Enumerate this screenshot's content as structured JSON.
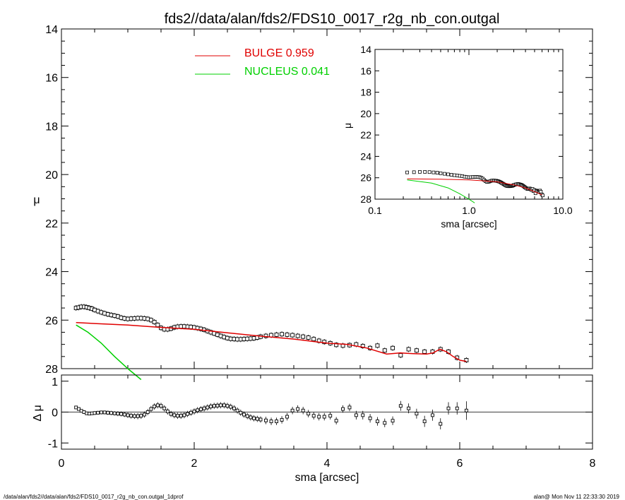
{
  "title": "fds2//data/alan/fds2/FDS10_0017_r2g_nb_con.outgal",
  "footer_left": "/data/alan/fds2//data/alan/fds2/FDS10_0017_r2g_nb_con.outgal_1dprof",
  "footer_right": "alan@  Mon Nov 11 22:33:30 2019",
  "chart_data": [
    {
      "id": "main",
      "type": "scatter",
      "xlabel": "sma [arcsec]",
      "ylabel": "μ",
      "xlim": [
        0,
        8
      ],
      "ylim": [
        28,
        14
      ],
      "xticks": [
        0,
        2,
        4,
        6,
        8
      ],
      "yticks": [
        14,
        16,
        18,
        20,
        22,
        24,
        26,
        28
      ],
      "legend": [
        {
          "label": "BULGE",
          "value": "0.959",
          "color": "#e00000"
        },
        {
          "label": "NUCLEUS",
          "value": "0.041",
          "color": "#00d000"
        }
      ],
      "data_points": {
        "x": [
          0.22,
          0.26,
          0.3,
          0.34,
          0.38,
          0.42,
          0.46,
          0.5,
          0.55,
          0.6,
          0.65,
          0.7,
          0.75,
          0.8,
          0.85,
          0.9,
          0.95,
          1.0,
          1.05,
          1.1,
          1.15,
          1.2,
          1.25,
          1.3,
          1.35,
          1.4,
          1.45,
          1.5,
          1.55,
          1.6,
          1.65,
          1.7,
          1.75,
          1.8,
          1.85,
          1.9,
          1.95,
          2.0,
          2.05,
          2.1,
          2.15,
          2.2,
          2.25,
          2.3,
          2.35,
          2.4,
          2.45,
          2.5,
          2.55,
          2.6,
          2.65,
          2.7,
          2.75,
          2.8,
          2.85,
          2.9,
          2.95,
          3.0,
          3.08,
          3.16,
          3.24,
          3.32,
          3.4,
          3.48,
          3.56,
          3.64,
          3.72,
          3.8,
          3.88,
          3.96,
          4.05,
          4.14,
          4.24,
          4.34,
          4.44,
          4.54,
          4.65,
          4.76,
          4.87,
          4.99,
          5.11,
          5.23,
          5.35,
          5.47,
          5.59,
          5.71,
          5.83,
          5.96,
          6.1
        ],
        "y": [
          25.5,
          25.48,
          25.45,
          25.45,
          25.47,
          25.5,
          25.53,
          25.58,
          25.63,
          25.68,
          25.72,
          25.76,
          25.79,
          25.82,
          25.85,
          25.9,
          25.93,
          25.95,
          25.94,
          25.93,
          25.92,
          25.92,
          25.93,
          25.95,
          26.0,
          26.08,
          26.2,
          26.32,
          26.38,
          26.38,
          26.35,
          26.3,
          26.27,
          26.26,
          26.26,
          26.27,
          26.28,
          26.3,
          26.33,
          26.36,
          26.4,
          26.45,
          26.5,
          26.55,
          26.6,
          26.65,
          26.7,
          26.74,
          26.77,
          26.78,
          26.79,
          26.79,
          26.78,
          26.77,
          26.76,
          26.75,
          26.72,
          26.68,
          26.65,
          26.62,
          26.6,
          26.58,
          26.6,
          26.62,
          26.65,
          26.68,
          26.72,
          26.78,
          26.85,
          26.9,
          26.95,
          27.02,
          27.05,
          27.03,
          27.0,
          27.07,
          27.15,
          27.05,
          27.25,
          27.15,
          27.45,
          27.2,
          27.25,
          27.3,
          27.3,
          27.2,
          27.3,
          27.55,
          27.65
        ]
      },
      "bulge_model": {
        "x": [
          0.22,
          0.5,
          1.0,
          1.5,
          2.0,
          2.5,
          3.0,
          3.5,
          4.0,
          4.3,
          4.6,
          4.9,
          5.1,
          5.3,
          5.5,
          5.6,
          5.7,
          5.8,
          5.9,
          6.0,
          6.1
        ],
        "y": [
          26.1,
          26.14,
          26.2,
          26.3,
          26.38,
          26.52,
          26.66,
          26.78,
          26.95,
          27.0,
          27.15,
          27.4,
          27.35,
          27.38,
          27.4,
          27.35,
          27.2,
          27.3,
          27.5,
          27.65,
          27.7
        ]
      },
      "nucleus_model": {
        "x": [
          0.22,
          0.4,
          0.6,
          0.8,
          1.0,
          1.2
        ],
        "y": [
          26.2,
          26.5,
          26.95,
          27.5,
          28.0,
          28.45
        ]
      }
    },
    {
      "id": "inset",
      "type": "scatter",
      "xlabel": "sma [arcsec]",
      "ylabel": "μ",
      "xscale": "log",
      "xlim": [
        0.1,
        10.0
      ],
      "ylim": [
        28,
        14
      ],
      "xticks": [
        "0.1",
        "1.0",
        "10.0"
      ],
      "yticks": [
        14,
        16,
        18,
        20,
        22,
        24,
        26,
        28
      ],
      "bulge_model": {
        "x": [
          0.22,
          0.5,
          1.0,
          1.5,
          2.0,
          3.0,
          4.0,
          5.0,
          6.0
        ],
        "y": [
          26.1,
          26.14,
          26.2,
          26.3,
          26.38,
          26.66,
          26.95,
          27.3,
          27.6
        ]
      },
      "nucleus_model": {
        "x": [
          0.22,
          0.4,
          0.6,
          0.8,
          1.0,
          1.15
        ],
        "y": [
          26.2,
          26.5,
          26.95,
          27.5,
          28.0,
          28.35
        ]
      }
    },
    {
      "id": "residuals",
      "type": "scatter",
      "xlabel": "sma [arcsec]",
      "ylabel": "Δ μ",
      "xlim": [
        0,
        8
      ],
      "ylim": [
        -1.2,
        1.2
      ],
      "xticks": [
        0,
        2,
        4,
        6,
        8
      ],
      "yticks": [
        1,
        0,
        -1
      ],
      "x": [
        0.22,
        0.26,
        0.3,
        0.34,
        0.38,
        0.42,
        0.46,
        0.5,
        0.55,
        0.6,
        0.65,
        0.7,
        0.75,
        0.8,
        0.85,
        0.9,
        0.95,
        1.0,
        1.05,
        1.1,
        1.15,
        1.2,
        1.25,
        1.3,
        1.35,
        1.4,
        1.45,
        1.5,
        1.55,
        1.6,
        1.65,
        1.7,
        1.75,
        1.8,
        1.85,
        1.9,
        1.95,
        2.0,
        2.05,
        2.1,
        2.15,
        2.2,
        2.25,
        2.3,
        2.35,
        2.4,
        2.45,
        2.5,
        2.55,
        2.6,
        2.65,
        2.7,
        2.75,
        2.8,
        2.85,
        2.9,
        2.95,
        3.0,
        3.08,
        3.16,
        3.24,
        3.32,
        3.4,
        3.48,
        3.56,
        3.64,
        3.72,
        3.8,
        3.88,
        3.96,
        4.05,
        4.14,
        4.24,
        4.34,
        4.44,
        4.54,
        4.65,
        4.76,
        4.87,
        4.99,
        5.11,
        5.23,
        5.35,
        5.47,
        5.59,
        5.71,
        5.83,
        5.96,
        6.1
      ],
      "values": [
        0.15,
        0.1,
        0.04,
        0.0,
        -0.04,
        -0.05,
        -0.04,
        -0.03,
        -0.02,
        -0.01,
        -0.01,
        -0.02,
        -0.03,
        -0.04,
        -0.05,
        -0.06,
        -0.08,
        -0.1,
        -0.12,
        -0.13,
        -0.13,
        -0.12,
        -0.08,
        0.0,
        0.1,
        0.18,
        0.22,
        0.2,
        0.12,
        0.02,
        -0.06,
        -0.1,
        -0.12,
        -0.12,
        -0.1,
        -0.06,
        -0.02,
        0.02,
        0.06,
        0.09,
        0.12,
        0.15,
        0.18,
        0.2,
        0.21,
        0.22,
        0.22,
        0.2,
        0.17,
        0.12,
        0.05,
        -0.02,
        -0.08,
        -0.13,
        -0.17,
        -0.2,
        -0.22,
        -0.24,
        -0.27,
        -0.3,
        -0.3,
        -0.25,
        -0.15,
        0.05,
        0.1,
        0.05,
        -0.05,
        -0.12,
        -0.15,
        -0.15,
        -0.12,
        -0.28,
        0.1,
        0.15,
        -0.1,
        -0.1,
        -0.2,
        -0.3,
        -0.35,
        -0.28,
        0.2,
        0.12,
        -0.05,
        -0.3,
        -0.1,
        -0.38,
        0.12,
        0.12,
        0.05
      ],
      "errors": [
        0.05,
        0.05,
        0.05,
        0.05,
        0.05,
        0.05,
        0.05,
        0.06,
        0.06,
        0.06,
        0.06,
        0.07,
        0.07,
        0.07,
        0.08,
        0.08,
        0.08,
        0.09,
        0.09,
        0.09,
        0.1,
        0.1,
        0.1,
        0.1,
        0.1,
        0.1,
        0.1,
        0.1,
        0.1,
        0.1,
        0.1,
        0.1,
        0.1,
        0.1,
        0.1,
        0.1,
        0.1,
        0.1,
        0.1,
        0.1,
        0.1,
        0.1,
        0.1,
        0.1,
        0.1,
        0.1,
        0.1,
        0.1,
        0.1,
        0.1,
        0.1,
        0.1,
        0.1,
        0.1,
        0.1,
        0.1,
        0.1,
        0.1,
        0.12,
        0.12,
        0.12,
        0.12,
        0.12,
        0.12,
        0.12,
        0.12,
        0.12,
        0.12,
        0.12,
        0.12,
        0.12,
        0.12,
        0.12,
        0.12,
        0.14,
        0.14,
        0.14,
        0.14,
        0.14,
        0.14,
        0.16,
        0.16,
        0.16,
        0.18,
        0.18,
        0.18,
        0.2,
        0.2,
        0.3
      ]
    }
  ]
}
